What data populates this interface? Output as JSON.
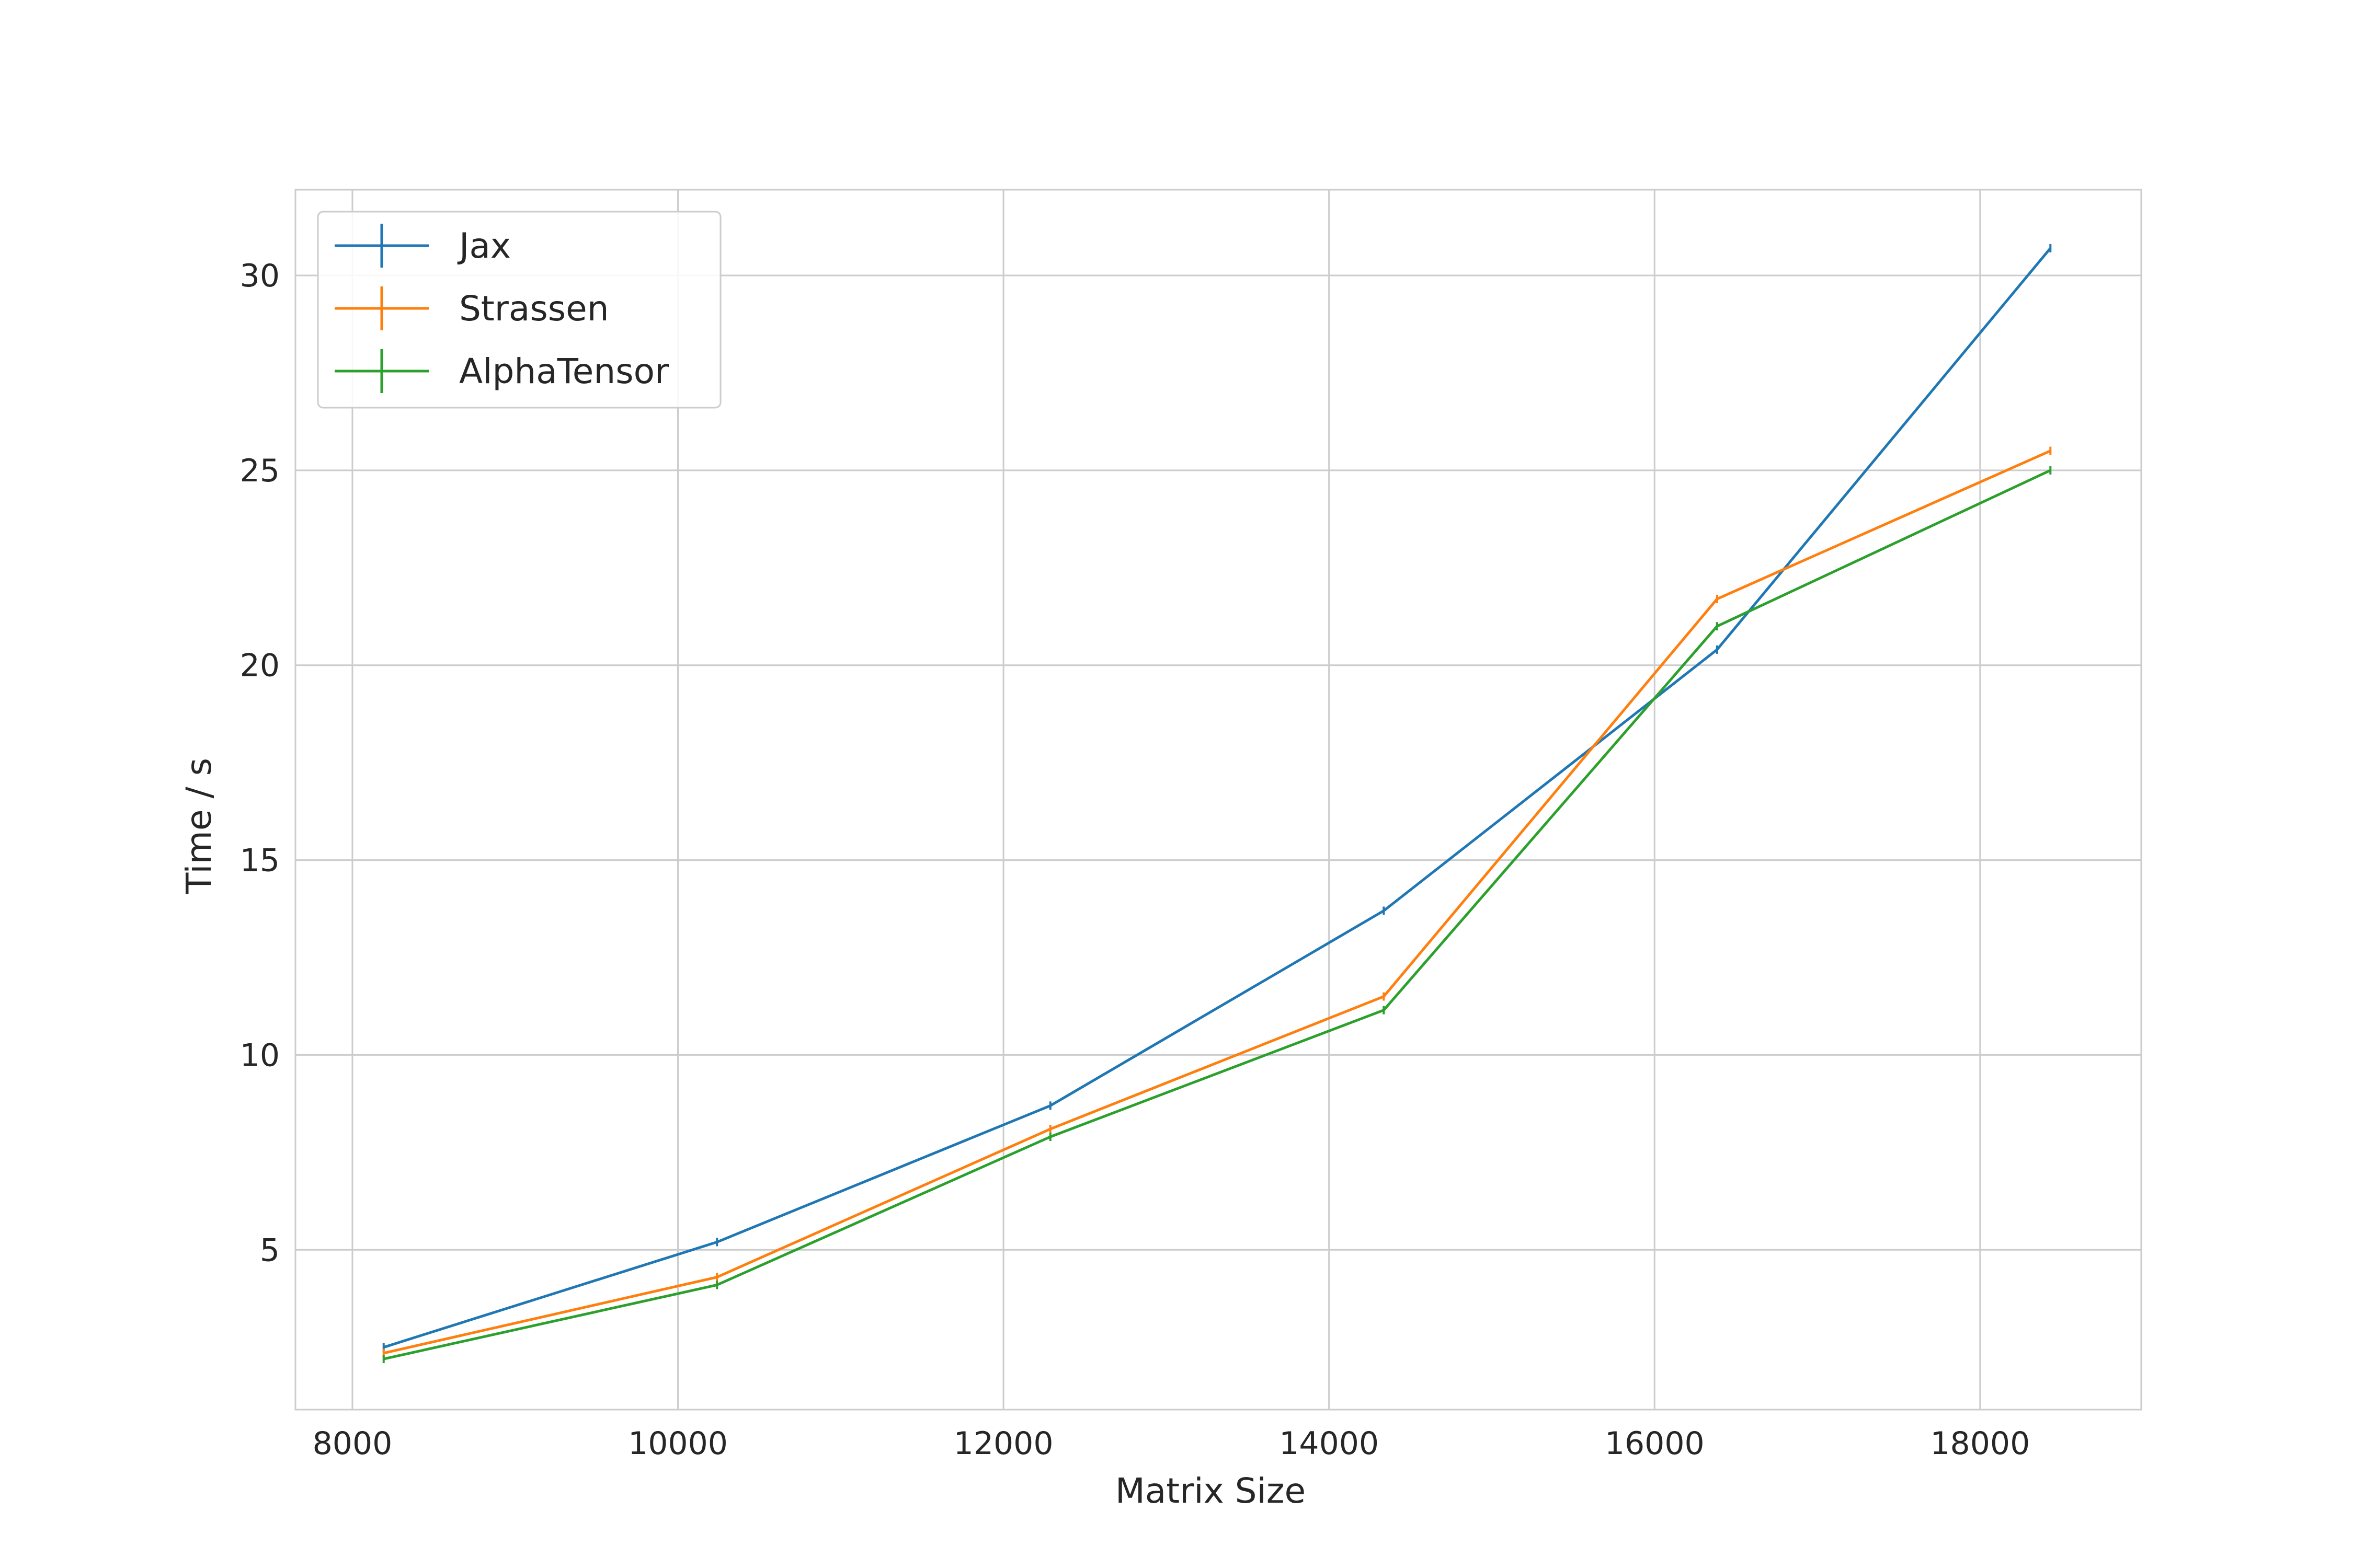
{
  "chart_data": {
    "type": "line",
    "title": "",
    "xlabel": "Matrix Size",
    "ylabel": "Time / s",
    "xlim": [
      7650,
      18990
    ],
    "ylim": [
      0.9,
      32.2
    ],
    "xticks": [
      8000,
      10000,
      12000,
      14000,
      16000,
      18000
    ],
    "yticks": [
      5,
      10,
      15,
      20,
      25,
      30
    ],
    "grid": true,
    "legend_position": "top-left",
    "x": [
      8192,
      10240,
      12288,
      14336,
      16384,
      18432
    ],
    "series": [
      {
        "name": "Jax",
        "color": "#1f77b4",
        "values": [
          2.5,
          5.2,
          8.7,
          13.7,
          20.4,
          30.7
        ]
      },
      {
        "name": "Strassen",
        "color": "#ff7f0e",
        "values": [
          2.35,
          4.3,
          8.1,
          11.5,
          21.7,
          25.5
        ]
      },
      {
        "name": "AlphaTensor",
        "color": "#2ca02c",
        "values": [
          2.2,
          4.1,
          7.9,
          11.15,
          21.0,
          25.0
        ]
      }
    ]
  }
}
